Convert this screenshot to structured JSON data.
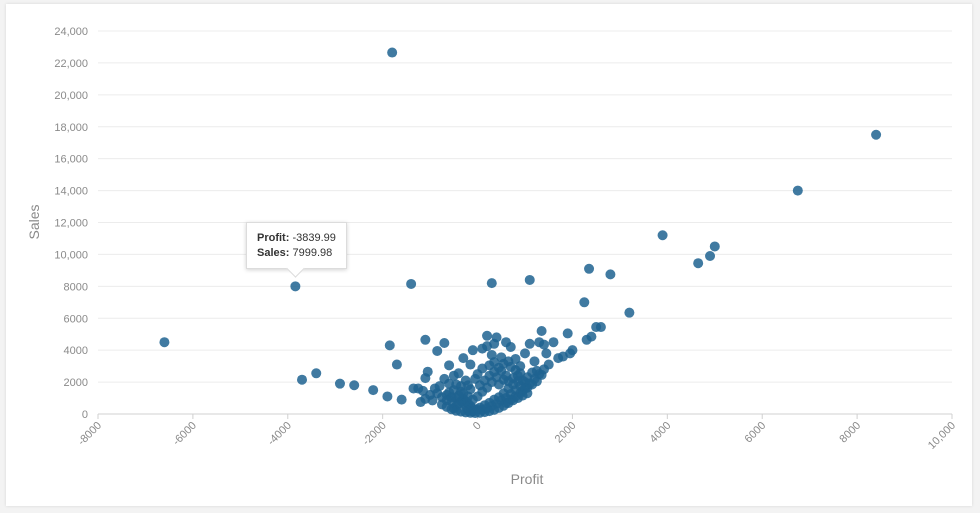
{
  "chart_data": {
    "type": "scatter",
    "xlabel": "Profit",
    "ylabel": "Sales",
    "xlim": [
      -8000,
      10000
    ],
    "ylim": [
      0,
      24000
    ],
    "x_ticks": [
      "-8000",
      "-6000",
      "-4000",
      "-2000",
      "0",
      "2000",
      "4000",
      "6000",
      "8000",
      "10,000"
    ],
    "y_ticks": [
      "0",
      "2000",
      "4000",
      "6000",
      "8000",
      "10,000",
      "12,000",
      "14,000",
      "16,000",
      "18,000",
      "20,000",
      "22,000",
      "24,000"
    ],
    "grid": true,
    "color": "#1f6391",
    "points": [
      [
        -1800,
        22650
      ],
      [
        8400,
        17500
      ],
      [
        6750,
        14000
      ],
      [
        3900,
        11200
      ],
      [
        5000,
        10500
      ],
      [
        4900,
        9900
      ],
      [
        4650,
        9450
      ],
      [
        2350,
        9100
      ],
      [
        2800,
        8750
      ],
      [
        1100,
        8400
      ],
      [
        300,
        8200
      ],
      [
        -1400,
        8150
      ],
      [
        -3840,
        8000
      ],
      [
        2250,
        7000
      ],
      [
        3200,
        6350
      ],
      [
        -6600,
        4500
      ],
      [
        -3700,
        2150
      ],
      [
        -3400,
        2550
      ],
      [
        -2900,
        1900
      ],
      [
        -2600,
        1800
      ],
      [
        -2200,
        1500
      ],
      [
        -1900,
        1100
      ],
      [
        -1600,
        900
      ],
      [
        -1850,
        4300
      ],
      [
        -1700,
        3100
      ],
      [
        -1100,
        4650
      ],
      [
        -850,
        3950
      ],
      [
        -700,
        4450
      ],
      [
        -1050,
        2650
      ],
      [
        -1100,
        2250
      ],
      [
        -1250,
        1600
      ],
      [
        -1350,
        1600
      ],
      [
        -1150,
        1450
      ],
      [
        -1000,
        1200
      ],
      [
        -900,
        1600
      ],
      [
        -1200,
        750
      ],
      [
        -1100,
        950
      ],
      [
        -800,
        1750
      ],
      [
        -700,
        2200
      ],
      [
        -600,
        1900
      ],
      [
        -500,
        2400
      ],
      [
        -400,
        2550
      ],
      [
        -650,
        1200
      ],
      [
        -550,
        800
      ],
      [
        -450,
        1000
      ],
      [
        -350,
        1400
      ],
      [
        -300,
        700
      ],
      [
        -250,
        550
      ],
      [
        -200,
        1800
      ],
      [
        -150,
        3100
      ],
      [
        -100,
        4000
      ],
      [
        -600,
        3050
      ],
      [
        -300,
        3500
      ],
      [
        100,
        4100
      ],
      [
        200,
        4250
      ],
      [
        350,
        4400
      ],
      [
        200,
        4900
      ],
      [
        400,
        4800
      ],
      [
        600,
        4500
      ],
      [
        700,
        4200
      ],
      [
        300,
        3700
      ],
      [
        500,
        3550
      ],
      [
        800,
        3450
      ],
      [
        900,
        3000
      ],
      [
        1000,
        3800
      ],
      [
        1100,
        4400
      ],
      [
        1200,
        3300
      ],
      [
        1300,
        4500
      ],
      [
        1350,
        5200
      ],
      [
        1400,
        4350
      ],
      [
        1450,
        3800
      ],
      [
        1600,
        4500
      ],
      [
        1700,
        3500
      ],
      [
        1800,
        3600
      ],
      [
        1900,
        5050
      ],
      [
        2000,
        4000
      ],
      [
        2300,
        4650
      ],
      [
        2400,
        4850
      ],
      [
        2500,
        5450
      ],
      [
        2600,
        5450
      ],
      [
        1950,
        3800
      ],
      [
        1500,
        3100
      ],
      [
        1250,
        2700
      ],
      [
        1050,
        2300
      ],
      [
        1150,
        2600
      ],
      [
        950,
        2100
      ],
      [
        850,
        2400
      ],
      [
        750,
        1850
      ],
      [
        650,
        1600
      ],
      [
        550,
        1300
      ],
      [
        450,
        1050
      ],
      [
        350,
        900
      ],
      [
        250,
        700
      ],
      [
        150,
        550
      ],
      [
        50,
        400
      ],
      [
        0,
        300
      ],
      [
        -50,
        250
      ],
      [
        -100,
        350
      ],
      [
        -150,
        500
      ],
      [
        -200,
        650
      ],
      [
        -250,
        800
      ],
      [
        -300,
        950
      ],
      [
        -350,
        800
      ],
      [
        -400,
        650
      ],
      [
        -450,
        500
      ],
      [
        -500,
        350
      ],
      [
        -200,
        200
      ],
      [
        -100,
        150
      ],
      [
        100,
        250
      ],
      [
        200,
        350
      ],
      [
        300,
        500
      ],
      [
        400,
        650
      ],
      [
        500,
        850
      ],
      [
        600,
        1000
      ],
      [
        700,
        1250
      ],
      [
        800,
        1500
      ],
      [
        900,
        1750
      ],
      [
        1000,
        2000
      ],
      [
        600,
        2400
      ],
      [
        500,
        2700
      ],
      [
        400,
        2300
      ],
      [
        300,
        2000
      ],
      [
        200,
        1650
      ],
      [
        100,
        1400
      ],
      [
        0,
        1100
      ],
      [
        -100,
        900
      ],
      [
        -200,
        1100
      ],
      [
        -300,
        1300
      ],
      [
        -400,
        1150
      ],
      [
        -500,
        1500
      ],
      [
        -600,
        1350
      ],
      [
        -150,
        1550
      ],
      [
        50,
        1800
      ],
      [
        150,
        2100
      ],
      [
        250,
        2400
      ],
      [
        350,
        2650
      ],
      [
        450,
        2900
      ],
      [
        550,
        3150
      ],
      [
        650,
        3300
      ],
      [
        100,
        2850
      ],
      [
        0,
        2500
      ],
      [
        -50,
        2200
      ],
      [
        -250,
        2100
      ],
      [
        -350,
        1750
      ],
      [
        -450,
        1850
      ],
      [
        800,
        2750
      ],
      [
        900,
        2550
      ],
      [
        700,
        2950
      ],
      [
        250,
        3050
      ],
      [
        350,
        3250
      ],
      [
        450,
        1850
      ],
      [
        550,
        2150
      ],
      [
        650,
        2050
      ],
      [
        750,
        2250
      ],
      [
        850,
        2050
      ],
      [
        950,
        1450
      ],
      [
        1050,
        1650
      ],
      [
        1150,
        1850
      ],
      [
        1250,
        2050
      ],
      [
        1350,
        2450
      ],
      [
        600,
        700
      ],
      [
        700,
        900
      ],
      [
        800,
        1100
      ],
      [
        900,
        1300
      ],
      [
        1000,
        1600
      ],
      [
        1100,
        1900
      ],
      [
        1200,
        2200
      ],
      [
        1300,
        2500
      ],
      [
        1400,
        2800
      ],
      [
        -550,
        1050
      ],
      [
        -650,
        850
      ],
      [
        -750,
        1050
      ],
      [
        -850,
        1300
      ],
      [
        -950,
        850
      ],
      [
        -750,
        600
      ],
      [
        -650,
        450
      ],
      [
        -550,
        300
      ],
      [
        -450,
        200
      ],
      [
        -350,
        150
      ],
      [
        -250,
        100
      ],
      [
        -150,
        80
      ],
      [
        -50,
        60
      ],
      [
        50,
        80
      ],
      [
        150,
        120
      ],
      [
        250,
        180
      ],
      [
        350,
        260
      ],
      [
        450,
        380
      ],
      [
        550,
        520
      ],
      [
        650,
        680
      ],
      [
        750,
        860
      ],
      [
        850,
        1000
      ],
      [
        950,
        1150
      ],
      [
        1050,
        1300
      ]
    ],
    "tooltip": {
      "profit_label": "Profit:",
      "profit_value": "-3839.99",
      "sales_label": "Sales:",
      "sales_value": "7999.98"
    }
  }
}
